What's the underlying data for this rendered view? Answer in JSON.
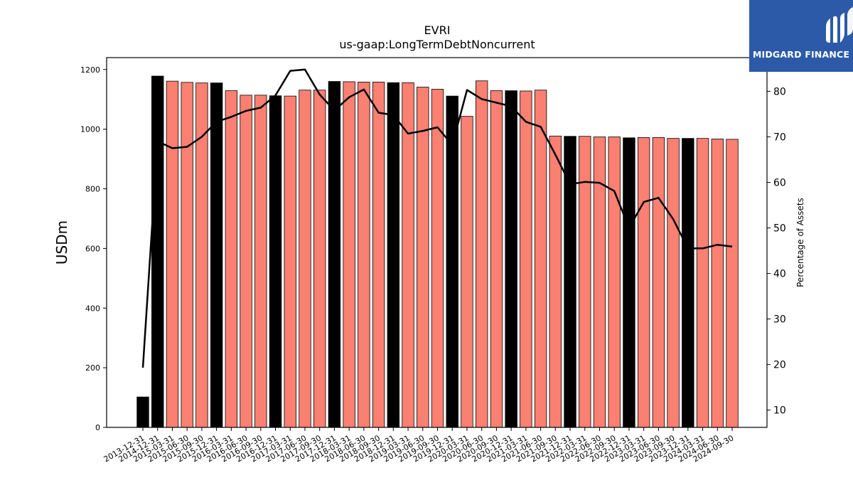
{
  "chart_data": {
    "type": "bar",
    "title": "EVRI",
    "subtitle": "us-gaap:LongTermDebtNoncurrent",
    "ylabel": "USDm",
    "y2label": "Percentage of Assets",
    "ylim": [
      0,
      1240
    ],
    "y2lim": [
      6.2,
      87.4
    ],
    "yticks": [
      0,
      200,
      400,
      600,
      800,
      1000,
      1200
    ],
    "y2ticks": [
      10,
      20,
      30,
      40,
      50,
      60,
      70,
      80
    ],
    "categories": [
      "2013-12-31",
      "2014-12-31",
      "2015-03-31",
      "2015-06-30",
      "2015-09-30",
      "2015-12-31",
      "2016-03-31",
      "2016-06-30",
      "2016-09-30",
      "2016-12-31",
      "2017-03-31",
      "2017-06-30",
      "2017-09-30",
      "2017-12-31",
      "2018-03-31",
      "2018-06-30",
      "2018-09-30",
      "2018-12-31",
      "2019-03-31",
      "2019-06-30",
      "2019-09-30",
      "2019-12-31",
      "2020-03-31",
      "2020-06-30",
      "2020-09-30",
      "2020-12-31",
      "2021-03-31",
      "2021-06-30",
      "2021-09-30",
      "2021-12-31",
      "2022-03-31",
      "2022-06-30",
      "2022-09-30",
      "2022-12-31",
      "2023-03-31",
      "2023-06-30",
      "2023-09-30",
      "2023-12-31",
      "2024-03-31",
      "2024-06-30",
      "2024-09-30"
    ],
    "series": [
      {
        "axis": "left",
        "kind": "bar",
        "values": [
          102,
          1178,
          1161,
          1157,
          1155,
          1155,
          1129,
          1114,
          1114,
          1112,
          1111,
          1131,
          1131,
          1160,
          1159,
          1158,
          1158,
          1156,
          1156,
          1141,
          1134,
          1111,
          1043,
          1162,
          1129,
          1129,
          1128,
          1131,
          977,
          976,
          976,
          974,
          974,
          971,
          972,
          972,
          969,
          969,
          969,
          967,
          966
        ],
        "year_end_color": "#000000",
        "quarter_color": "#fa8072"
      },
      {
        "axis": "right",
        "kind": "line",
        "color": "#000000",
        "values": [
          19.3,
          69.0,
          67.5,
          67.8,
          70.0,
          73.3,
          74.4,
          75.7,
          76.4,
          79.1,
          84.5,
          84.8,
          79.3,
          75.8,
          78.7,
          80.4,
          75.3,
          74.8,
          70.7,
          71.3,
          72.1,
          68.2,
          80.3,
          78.3,
          77.5,
          76.7,
          73.3,
          72.2,
          66.1,
          59.6,
          60.1,
          59.9,
          58.1,
          50.0,
          55.7,
          56.6,
          51.9,
          45.5,
          45.5,
          46.3,
          45.9
        ]
      }
    ],
    "grid": false,
    "legend": "none"
  },
  "logo": {
    "text": "MIDGARD FINANCE",
    "background": "#2c5aa8"
  }
}
